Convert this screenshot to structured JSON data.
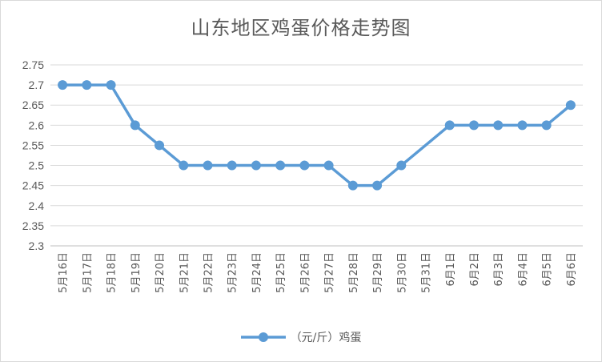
{
  "chart_data": {
    "type": "line",
    "title": "山东地区鸡蛋价格走势图",
    "categories": [
      "5月16日",
      "5月17日",
      "5月18日",
      "5月19日",
      "5月20日",
      "5月21日",
      "5月22日",
      "5月23日",
      "5月24日",
      "5月25日",
      "5月26日",
      "5月27日",
      "5月28日",
      "5月29日",
      "5月30日",
      "5月31日",
      "6月1日",
      "6月2日",
      "6月3日",
      "6月4日",
      "6月5日",
      "6月6日"
    ],
    "series": [
      {
        "name": "（元/斤）鸡蛋",
        "values": [
          2.7,
          2.7,
          2.7,
          2.6,
          2.55,
          2.5,
          2.5,
          2.5,
          2.5,
          2.5,
          2.5,
          2.5,
          2.45,
          2.45,
          2.5,
          null,
          2.6,
          2.6,
          2.6,
          2.6,
          2.6,
          2.65
        ],
        "color": "#5b9bd5"
      }
    ],
    "ylim": [
      2.3,
      2.75
    ],
    "yticks": [
      "2.75",
      "2.7",
      "2.65",
      "2.6",
      "2.55",
      "2.5",
      "2.45",
      "2.4",
      "2.35",
      "2.3"
    ],
    "xlabel": "",
    "ylabel": "",
    "grid": true,
    "legend": "bottom",
    "gridColor": "#d9d9d9",
    "axisColor": "#bfbfbf"
  }
}
